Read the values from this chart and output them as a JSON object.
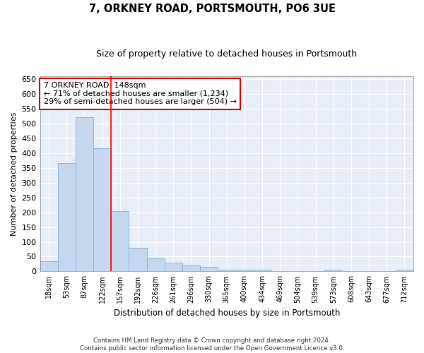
{
  "title": "7, ORKNEY ROAD, PORTSMOUTH, PO6 3UE",
  "subtitle": "Size of property relative to detached houses in Portsmouth",
  "xlabel": "Distribution of detached houses by size in Portsmouth",
  "ylabel": "Number of detached properties",
  "bar_color": "#c5d8f0",
  "bar_edge_color": "#7aadd4",
  "plot_bg_color": "#e8eef8",
  "categories": [
    "18sqm",
    "53sqm",
    "87sqm",
    "122sqm",
    "157sqm",
    "192sqm",
    "226sqm",
    "261sqm",
    "296sqm",
    "330sqm",
    "365sqm",
    "400sqm",
    "434sqm",
    "469sqm",
    "504sqm",
    "539sqm",
    "573sqm",
    "608sqm",
    "643sqm",
    "677sqm",
    "712sqm"
  ],
  "values": [
    35,
    365,
    520,
    415,
    205,
    80,
    45,
    30,
    20,
    15,
    5,
    5,
    5,
    0,
    0,
    0,
    5,
    0,
    0,
    0,
    5
  ],
  "ylim": [
    0,
    660
  ],
  "yticks": [
    0,
    50,
    100,
    150,
    200,
    250,
    300,
    350,
    400,
    450,
    500,
    550,
    600,
    650
  ],
  "property_line_x": 3.5,
  "annotation_title": "7 ORKNEY ROAD: 148sqm",
  "annotation_line2": "← 71% of detached houses are smaller (1,234)",
  "annotation_line3": "29% of semi-detached houses are larger (504) →",
  "annotation_box_color": "#ffffff",
  "annotation_border_color": "#cc0000",
  "footer_line1": "Contains HM Land Registry data © Crown copyright and database right 2024.",
  "footer_line2": "Contains public sector information licensed under the Open Government Licence v3.0."
}
